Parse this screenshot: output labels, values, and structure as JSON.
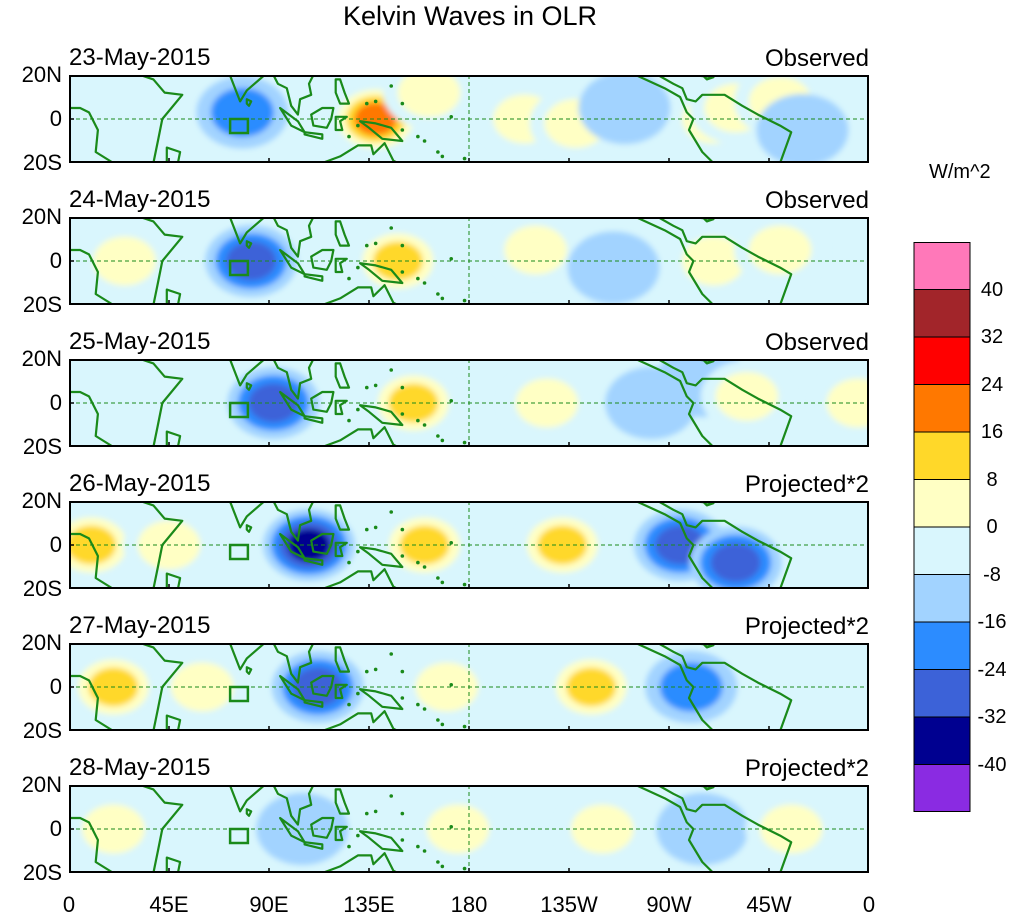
{
  "title": "Kelvin Waves in OLR",
  "units": "W/m^2",
  "lat_labels": [
    "20N",
    "0",
    "20S"
  ],
  "lon_labels": [
    "0",
    "45E",
    "90E",
    "135E",
    "180",
    "135W",
    "90W",
    "45W",
    "0"
  ],
  "colorbar": {
    "levels": [
      "40",
      "32",
      "24",
      "16",
      "8",
      "0",
      "-8",
      "-16",
      "-24",
      "-32",
      "-40"
    ],
    "colors": [
      "#ff78b9",
      "#a2252a",
      "#ff0000",
      "#ff7800",
      "#ffd829",
      "#ffffc4",
      "#d9f6fd",
      "#a2d3ff",
      "#2c8cff",
      "#3c62d8",
      "#000090",
      "#8a2be2"
    ]
  },
  "panels": [
    {
      "date": "23-May-2015",
      "kind": "Observed"
    },
    {
      "date": "24-May-2015",
      "kind": "Observed"
    },
    {
      "date": "25-May-2015",
      "kind": "Observed"
    },
    {
      "date": "26-May-2015",
      "kind": "Projected*2"
    },
    {
      "date": "27-May-2015",
      "kind": "Projected*2"
    },
    {
      "date": "28-May-2015",
      "kind": "Projected*2"
    }
  ],
  "features": [
    [
      {
        "lon": 78,
        "lat": 3,
        "level": -16
      },
      {
        "lon": 138,
        "lat": 0,
        "level": 24
      },
      {
        "lon": 162,
        "lat": 12,
        "level": 8
      },
      {
        "lon": 205,
        "lat": 0,
        "level": 8
      },
      {
        "lon": 228,
        "lat": -2,
        "level": 8
      },
      {
        "lon": 290,
        "lat": 0,
        "level": 8
      },
      {
        "lon": 300,
        "lat": 5,
        "level": 8
      },
      {
        "lon": 320,
        "lat": 8,
        "level": 8
      },
      {
        "lon": 250,
        "lat": 5,
        "level": -8
      },
      {
        "lon": 330,
        "lat": -5,
        "level": -8
      }
    ],
    [
      {
        "lon": 82,
        "lat": 0,
        "level": -24
      },
      {
        "lon": 148,
        "lat": 0,
        "level": 16
      },
      {
        "lon": 210,
        "lat": 5,
        "level": 8
      },
      {
        "lon": 290,
        "lat": 0,
        "level": 8
      },
      {
        "lon": 320,
        "lat": 5,
        "level": 8
      },
      {
        "lon": 245,
        "lat": -3,
        "level": -8
      },
      {
        "lon": 25,
        "lat": 0,
        "level": 8
      }
    ],
    [
      {
        "lon": 92,
        "lat": 0,
        "level": -24
      },
      {
        "lon": 155,
        "lat": 0,
        "level": 16
      },
      {
        "lon": 215,
        "lat": 0,
        "level": 8
      },
      {
        "lon": 262,
        "lat": 0,
        "level": -8
      },
      {
        "lon": 285,
        "lat": 10,
        "level": -8
      },
      {
        "lon": 305,
        "lat": 3,
        "level": 8
      },
      {
        "lon": 355,
        "lat": 0,
        "level": 8
      }
    ],
    [
      {
        "lon": 108,
        "lat": 0,
        "level": -32
      },
      {
        "lon": 160,
        "lat": 0,
        "level": 16
      },
      {
        "lon": 222,
        "lat": 0,
        "level": 16
      },
      {
        "lon": 275,
        "lat": 0,
        "level": -24
      },
      {
        "lon": 300,
        "lat": -8,
        "level": -24
      },
      {
        "lon": 10,
        "lat": 0,
        "level": 16
      },
      {
        "lon": 45,
        "lat": 0,
        "level": 8
      }
    ],
    [
      {
        "lon": 112,
        "lat": 0,
        "level": -24
      },
      {
        "lon": 170,
        "lat": 0,
        "level": 8
      },
      {
        "lon": 235,
        "lat": 0,
        "level": 16
      },
      {
        "lon": 280,
        "lat": 0,
        "level": -16
      },
      {
        "lon": 20,
        "lat": 0,
        "level": 16
      },
      {
        "lon": 60,
        "lat": 0,
        "level": 8
      }
    ],
    [
      {
        "lon": 20,
        "lat": 0,
        "level": 8
      },
      {
        "lon": 105,
        "lat": 0,
        "level": -8
      },
      {
        "lon": 175,
        "lat": 0,
        "level": 8
      },
      {
        "lon": 240,
        "lat": 0,
        "level": 8
      },
      {
        "lon": 285,
        "lat": 0,
        "level": -8
      },
      {
        "lon": 325,
        "lat": 0,
        "level": 8
      }
    ]
  ]
}
